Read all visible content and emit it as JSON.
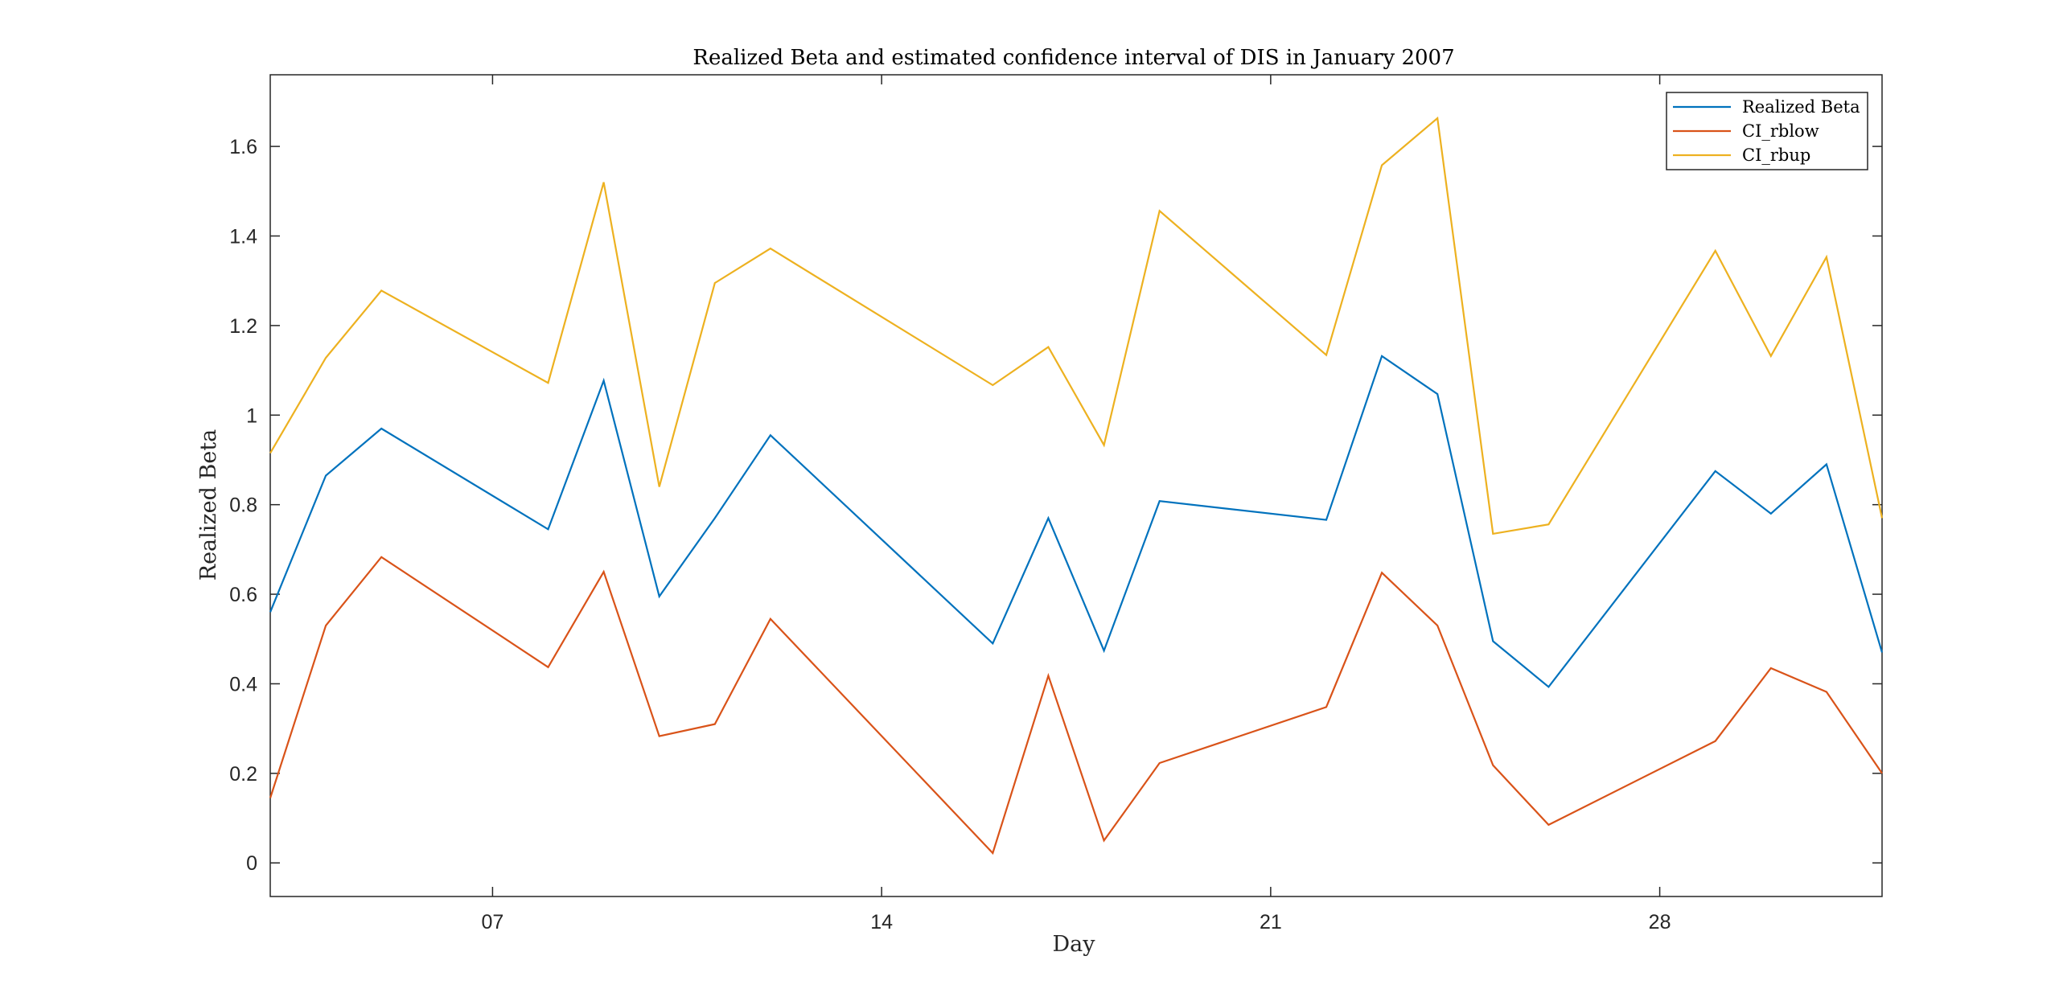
{
  "chart_data": {
    "type": "line",
    "title": "Realized Beta and estimated confidence interval of DIS in January 2007",
    "xlabel": "Day",
    "ylabel": "Realized Beta",
    "x": [
      3,
      4,
      5,
      8,
      9,
      10,
      11,
      12,
      16,
      17,
      18,
      19,
      22,
      23,
      24,
      25,
      26,
      29,
      30,
      31,
      32
    ],
    "xlim": [
      3,
      32
    ],
    "ylim": [
      -0.075,
      1.76
    ],
    "xticks": [
      7,
      14,
      21,
      28
    ],
    "xtick_labels": [
      "07",
      "14",
      "21",
      "28"
    ],
    "yticks": [
      0,
      0.2,
      0.4,
      0.6,
      0.8,
      1.0,
      1.2,
      1.4,
      1.6
    ],
    "ytick_labels": [
      "0",
      "0.2",
      "0.4",
      "0.6",
      "0.8",
      "1",
      "1.2",
      "1.4",
      "1.6"
    ],
    "grid": false,
    "legend_position": "top-right",
    "series": [
      {
        "name": "Realized Beta",
        "color": "#0072BD",
        "values": [
          0.56,
          0.865,
          0.97,
          0.745,
          1.077,
          0.595,
          0.77,
          0.955,
          0.49,
          0.77,
          0.474,
          0.808,
          0.766,
          1.132,
          1.047,
          0.495,
          0.393,
          0.875,
          0.78,
          0.89,
          0.47
        ]
      },
      {
        "name": "CI_rblow",
        "color": "#D95319",
        "values": [
          0.145,
          0.53,
          0.683,
          0.437,
          0.65,
          0.283,
          0.31,
          0.545,
          0.022,
          0.418,
          0.05,
          0.223,
          0.348,
          0.648,
          0.53,
          0.218,
          0.085,
          0.272,
          0.435,
          0.382,
          0.2
        ]
      },
      {
        "name": "CI_rbup",
        "color": "#EDB120",
        "values": [
          0.915,
          1.128,
          1.278,
          1.072,
          1.52,
          0.84,
          1.295,
          1.372,
          1.067,
          1.152,
          0.933,
          1.456,
          1.134,
          1.558,
          1.663,
          0.735,
          0.756,
          1.367,
          1.132,
          1.353,
          0.77
        ]
      }
    ]
  }
}
